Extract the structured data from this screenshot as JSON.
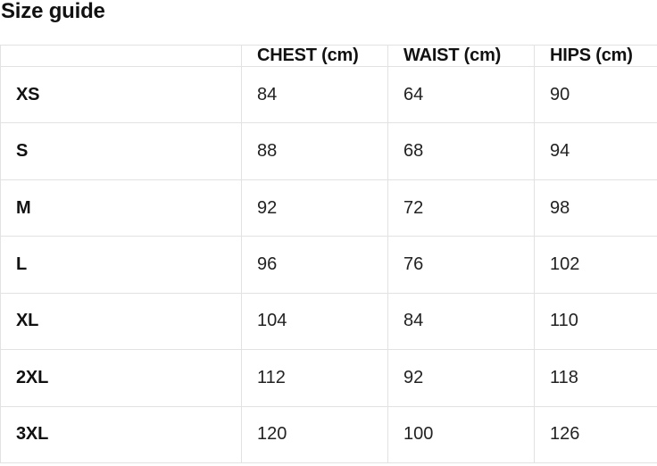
{
  "page": {
    "title": "Size guide"
  },
  "size_table": {
    "headers": {
      "size": "",
      "chest": "CHEST (cm)",
      "waist": "WAIST (cm)",
      "hips": "HIPS (cm)"
    },
    "rows": [
      {
        "size": "XS",
        "chest": "84",
        "waist": "64",
        "hips": "90"
      },
      {
        "size": "S",
        "chest": "88",
        "waist": "68",
        "hips": "94"
      },
      {
        "size": "M",
        "chest": "92",
        "waist": "72",
        "hips": "98"
      },
      {
        "size": "L",
        "chest": "96",
        "waist": "76",
        "hips": "102"
      },
      {
        "size": "XL",
        "chest": "104",
        "waist": "84",
        "hips": "110"
      },
      {
        "size": "2XL",
        "chest": "112",
        "waist": "92",
        "hips": "118"
      },
      {
        "size": "3XL",
        "chest": "120",
        "waist": "100",
        "hips": "126"
      }
    ]
  },
  "colors": {
    "text": "#1c1c1c",
    "heading_text": "#111111",
    "table_border": "#e2e2e2",
    "background": "#ffffff"
  }
}
